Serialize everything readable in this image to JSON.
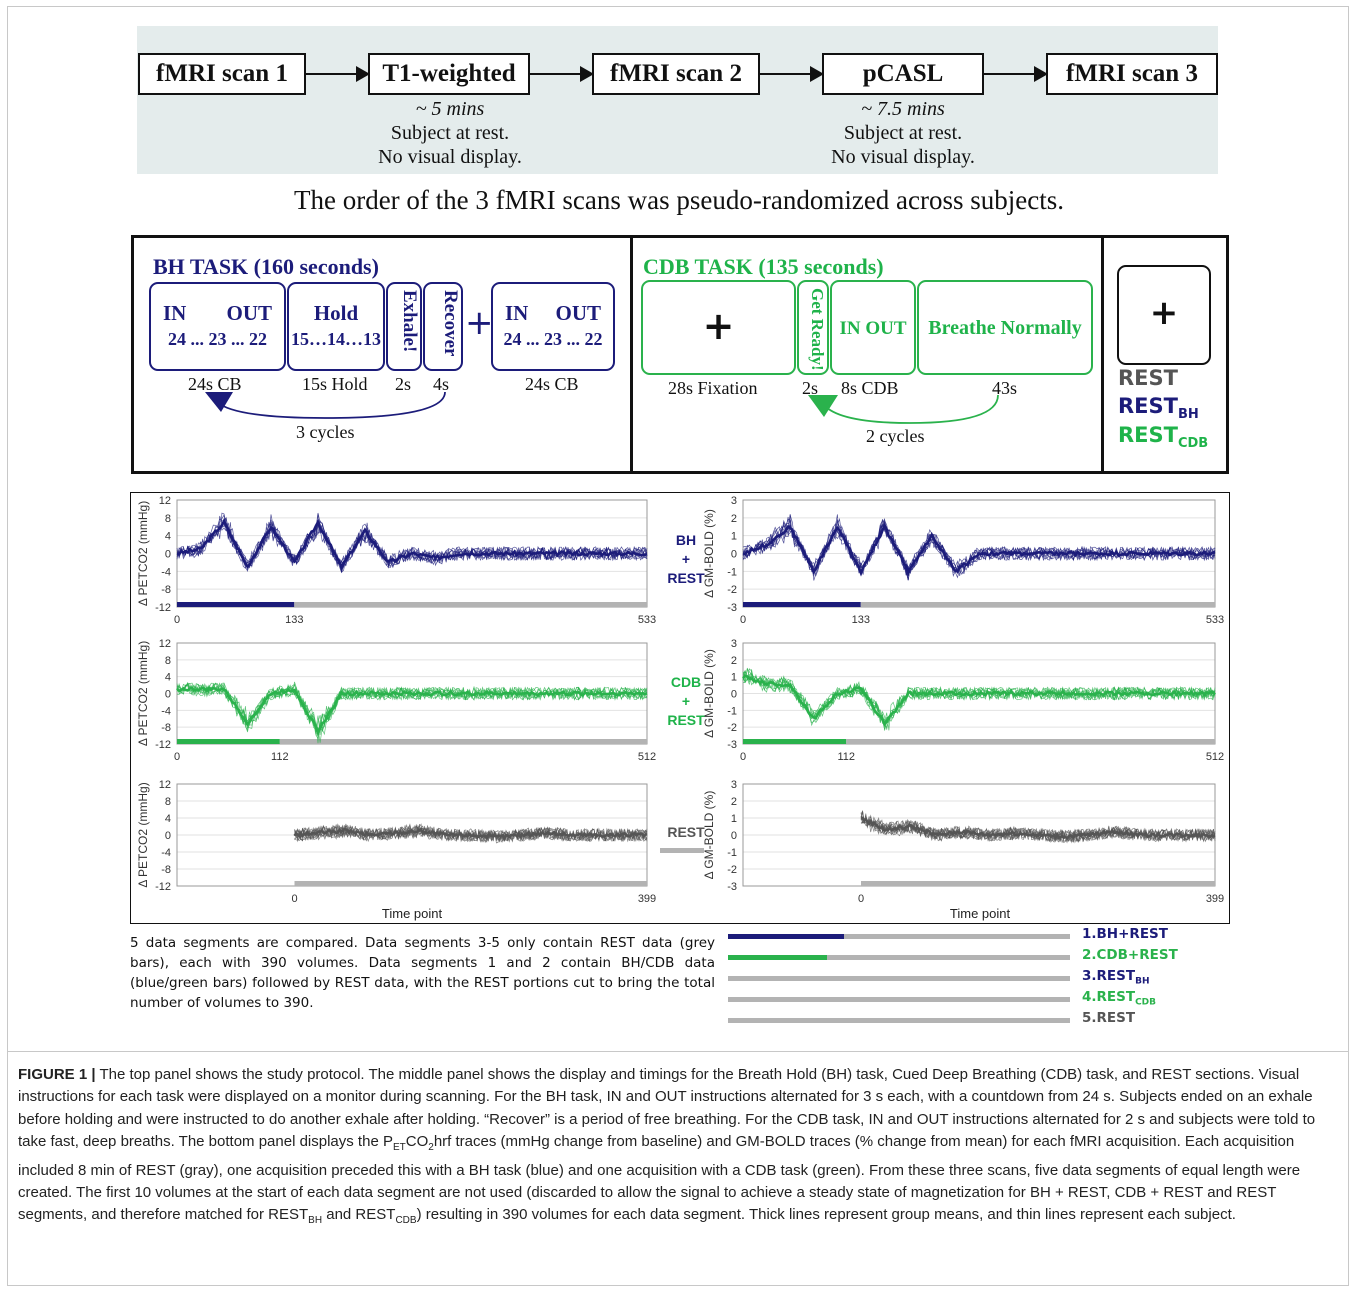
{
  "protocol": {
    "boxes": [
      "fMRI scan 1",
      "T1-weighted",
      "fMRI scan 2",
      "pCASL",
      "fMRI scan 3"
    ],
    "notes": [
      {
        "duration": "~ 5 mins",
        "line1": "Subject at rest.",
        "line2": "No visual display."
      },
      {
        "duration": "~ 7.5 mins",
        "line1": "Subject at rest.",
        "line2": "No visual display."
      }
    ],
    "order_text": "The order of the 3 fMRI scans was pseudo-randomized across subjects."
  },
  "bh_task": {
    "title": "BH TASK (160 seconds)",
    "box1": {
      "in": "IN",
      "out": "OUT",
      "count": "24 ... 23 ... 22"
    },
    "box2": {
      "hold": "Hold",
      "count": "15…14…13"
    },
    "box3": "Exhale!",
    "box4": "Recover",
    "plus": "+",
    "box5": {
      "in": "IN",
      "out": "OUT",
      "count": "24 ... 23 ... 22"
    },
    "labels": [
      "24s CB",
      "15s Hold",
      "2s",
      "4s",
      "24s CB"
    ],
    "cycles": "3 cycles",
    "color": "#1c1c7a"
  },
  "cdb_task": {
    "title": "CDB TASK (135 seconds)",
    "box1": "+",
    "box2": "Get Ready!",
    "box3": "IN OUT",
    "box4": "Breathe Normally",
    "labels": [
      "28s Fixation",
      "2s",
      "8s CDB",
      "43s"
    ],
    "cycles": "2 cycles",
    "color": "#1fb34a"
  },
  "rest_panel": {
    "plus": "+",
    "rest": "REST",
    "rest_bh": "REST",
    "rest_bh_sub": "BH",
    "rest_cdb": "REST",
    "rest_cdb_sub": "CDB"
  },
  "charts": {
    "side_labels": {
      "bh": [
        "BH",
        "+",
        "REST"
      ],
      "cdb": [
        "CDB",
        "+",
        "REST"
      ],
      "rest": "REST"
    },
    "xlabel": "Time point",
    "ylabel_left": "Δ PETCO2 (mmHg)",
    "ylabel_right": "Δ GM-BOLD (%)"
  },
  "chart_data": [
    {
      "type": "line",
      "ylabel": "Δ PETCO2 (mmHg)",
      "ylim": [
        -12,
        12
      ],
      "yticks": [
        12,
        8,
        4,
        0,
        -4,
        -8,
        -12
      ],
      "xticks": [
        0,
        133,
        533
      ],
      "xlim": [
        0,
        533
      ],
      "task_end": 133,
      "color": "#1c1c7a",
      "series": [
        {
          "values": [
            0,
            1,
            7,
            -3,
            6,
            -2,
            7,
            -3,
            5,
            -2,
            0,
            -1,
            0,
            0,
            0,
            0,
            0,
            0,
            0,
            0,
            0
          ]
        }
      ]
    },
    {
      "type": "line",
      "ylabel": "Δ GM-BOLD (%)",
      "ylim": [
        -3,
        3
      ],
      "yticks": [
        3,
        2,
        1,
        0,
        -1,
        -2,
        -3
      ],
      "xticks": [
        0,
        133,
        533
      ],
      "xlim": [
        0,
        533
      ],
      "task_end": 133,
      "color": "#1c1c7a",
      "series": [
        {
          "values": [
            0,
            0.5,
            1.5,
            -1,
            1.5,
            -1,
            1.5,
            -1,
            1,
            -1,
            0,
            0,
            0,
            0,
            0,
            0,
            0,
            0,
            0,
            0,
            0
          ]
        }
      ]
    },
    {
      "type": "line",
      "ylabel": "Δ PETCO2 (mmHg)",
      "ylim": [
        -12,
        12
      ],
      "yticks": [
        12,
        8,
        4,
        0,
        -4,
        -8,
        -12
      ],
      "xticks": [
        0,
        112,
        512
      ],
      "xlim": [
        0,
        512
      ],
      "task_end": 112,
      "color": "#2ab24c",
      "series": [
        {
          "values": [
            1,
            1,
            1,
            -7,
            0,
            1,
            -9,
            0,
            0,
            0,
            0,
            0,
            0,
            0,
            0,
            0,
            0,
            0,
            0,
            0,
            0
          ]
        }
      ]
    },
    {
      "type": "line",
      "ylabel": "Δ GM-BOLD (%)",
      "ylim": [
        -3,
        3
      ],
      "yticks": [
        3,
        2,
        1,
        0,
        -1,
        -2,
        -3
      ],
      "xticks": [
        0,
        112,
        512
      ],
      "xlim": [
        0,
        512
      ],
      "task_end": 112,
      "color": "#2ab24c",
      "series": [
        {
          "values": [
            1,
            0.6,
            0.5,
            -1.5,
            0,
            0.3,
            -1.8,
            0,
            0,
            0,
            0,
            0,
            0,
            0,
            0,
            0,
            0,
            0,
            0,
            0,
            0
          ]
        }
      ]
    },
    {
      "type": "line",
      "ylabel": "Δ PETCO2 (mmHg)",
      "ylim": [
        -12,
        12
      ],
      "yticks": [
        12,
        8,
        4,
        0,
        -4,
        -8,
        -12
      ],
      "xticks": [
        0,
        399
      ],
      "xlim": [
        -133,
        399
      ],
      "task_end": 0,
      "color": "#555555",
      "series": [
        {
          "values": [
            0,
            0.5,
            1,
            0,
            0.5,
            1,
            0,
            0,
            -0.5,
            0,
            0.5,
            0,
            0,
            0,
            0
          ]
        }
      ]
    },
    {
      "type": "line",
      "ylabel": "Δ GM-BOLD (%)",
      "ylim": [
        -3,
        3
      ],
      "yticks": [
        3,
        2,
        1,
        0,
        -1,
        -2,
        -3
      ],
      "xticks": [
        0,
        399
      ],
      "xlim": [
        -133,
        399
      ],
      "task_end": 0,
      "color": "#555555",
      "series": [
        {
          "values": [
            1,
            0.3,
            0.5,
            0,
            0.2,
            0,
            0.1,
            0,
            -0.1,
            0,
            0.2,
            0,
            0,
            0,
            0
          ]
        }
      ]
    }
  ],
  "segments": {
    "text": "5 data segments are compared. Data segments 3-5 only contain REST data (grey bars), each with 390 volumes. Data segments 1 and 2 contain BH/CDB data (blue/green bars) followed by REST data, with the REST portions cut to bring the total number of volumes to 390.",
    "items": [
      {
        "label": "1.BH+REST",
        "sub": "",
        "color": "#1c1c7a",
        "task_fraction": 0.34
      },
      {
        "label": "2.CDB+REST",
        "sub": "",
        "color": "#2ab24c",
        "task_fraction": 0.29
      },
      {
        "label": "3.REST",
        "sub": "BH",
        "color": "#1c1c7a",
        "task_fraction": 0
      },
      {
        "label": "4.REST",
        "sub": "CDB",
        "color": "#2ab24c",
        "task_fraction": 0
      },
      {
        "label": "5.REST",
        "sub": "",
        "color": "#555555",
        "task_fraction": 0
      }
    ]
  },
  "caption": {
    "label": "FIGURE 1 |",
    "text_a": " The top panel shows the study protocol. The middle panel shows the display and timings for the Breath Hold (BH) task, Cued Deep Breathing (CDB) task, and REST sections. Visual instructions for each task were displayed on a monitor during scanning. For the BH task, IN and OUT instructions alternated for 3 s each, with a countdown from 24 s. Subjects ended on an exhale before holding and were instructed to do another exhale after holding. “Recover” is a period of free breathing. For the CDB task, IN and OUT instructions alternated for 2 s and subjects were told to take fast, deep breaths. The bottom panel displays the P",
    "sub_et": "ET",
    "text_b": "CO",
    "sub_2": "2",
    "text_c": "hrf traces (mmHg change from baseline) and GM-BOLD traces (% change from mean) for each fMRI acquisition. Each acquisition included 8 min of REST (gray), one acquisition preceded this with a BH task (blue) and one acquisition with a CDB task (green). From these three scans, five data segments of equal length were created. The first 10 volumes at the start of each data segment are not used (discarded to allow the signal to achieve a steady state of magnetization for BH + REST, CDB + REST and REST segments, and therefore matched for REST",
    "sub_bh": "BH",
    "text_d": " and REST",
    "sub_cdb": "CDB",
    "text_e": ") resulting in 390 volumes for each data segment. Thick lines represent group means, and thin lines represent each subject."
  }
}
